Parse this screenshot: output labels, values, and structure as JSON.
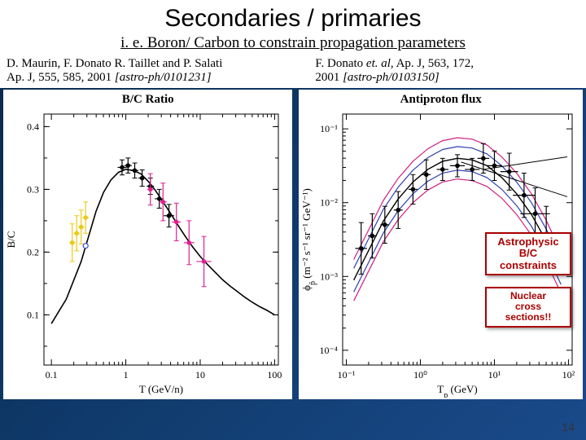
{
  "title": "Secondaries / primaries",
  "subtitle": "i. e. Boron/ Carbon to constrain propagation parameters",
  "ref_left_line1": "D. Maurin, F. Donato R. Taillet and P. Salati",
  "ref_left_line2_a": "Ap. J, 555, 585, 2001 ",
  "ref_left_line2_b": "[astro-ph/0101231]",
  "ref_right_line1_a": "F. Donato ",
  "ref_right_line1_b": "et. al",
  "ref_right_line1_c": ", Ap. J, 563, 172,",
  "ref_right_line2_a": "2001 ",
  "ref_right_line2_b": "[astro-ph/0103150]",
  "chart_left": {
    "title": "B/C Ratio",
    "xlabel": "T (GeV/n)",
    "ylabel": "B/C",
    "xlim_log": [
      -1.1,
      2.05
    ],
    "xticks": [
      -1,
      0,
      1,
      2
    ],
    "xtick_labels": [
      "0.1",
      "1",
      "10",
      "100"
    ],
    "ylim": [
      0.02,
      0.42
    ],
    "yticks": [
      0.1,
      0.2,
      0.3,
      0.4
    ],
    "ytick_labels": [
      "0.1",
      "0.2",
      "0.3",
      "0.4"
    ],
    "curve_color": "#000000",
    "curve": [
      [
        -1.0,
        0.086
      ],
      [
        -0.8,
        0.125
      ],
      [
        -0.6,
        0.185
      ],
      [
        -0.5,
        0.225
      ],
      [
        -0.4,
        0.265
      ],
      [
        -0.3,
        0.295
      ],
      [
        -0.2,
        0.315
      ],
      [
        -0.1,
        0.327
      ],
      [
        0.0,
        0.332
      ],
      [
        0.1,
        0.33
      ],
      [
        0.2,
        0.325
      ],
      [
        0.3,
        0.313
      ],
      [
        0.4,
        0.298
      ],
      [
        0.5,
        0.28
      ],
      [
        0.6,
        0.262
      ],
      [
        0.7,
        0.243
      ],
      [
        0.8,
        0.225
      ],
      [
        0.9,
        0.208
      ],
      [
        1.0,
        0.193
      ],
      [
        1.1,
        0.18
      ],
      [
        1.2,
        0.168
      ],
      [
        1.3,
        0.156
      ],
      [
        1.4,
        0.146
      ],
      [
        1.5,
        0.137
      ],
      [
        1.6,
        0.128
      ],
      [
        1.7,
        0.12
      ],
      [
        1.8,
        0.113
      ],
      [
        1.9,
        0.107
      ],
      [
        2.0,
        0.1
      ]
    ],
    "data_yellow": {
      "color": "#eec816",
      "points": [
        [
          -0.72,
          0.215,
          0.03,
          0.04
        ],
        [
          -0.66,
          0.23,
          0.028,
          0.04
        ],
        [
          -0.6,
          0.24,
          0.027,
          0.04
        ],
        [
          -0.54,
          0.255,
          0.025,
          0.04
        ]
      ]
    },
    "data_open_blue": {
      "color": "#3050d0",
      "points": [
        [
          -0.54,
          0.21,
          0.0,
          0.0
        ]
      ]
    },
    "data_black": {
      "color": "#000000",
      "points": [
        [
          -0.05,
          0.335,
          0.012,
          0.06
        ],
        [
          0.03,
          0.338,
          0.012,
          0.05
        ],
        [
          0.12,
          0.33,
          0.012,
          0.05
        ],
        [
          0.22,
          0.318,
          0.013,
          0.05
        ],
        [
          0.33,
          0.305,
          0.013,
          0.05
        ],
        [
          0.45,
          0.285,
          0.015,
          0.06
        ],
        [
          0.58,
          0.258,
          0.018,
          0.07
        ]
      ]
    },
    "data_magenta": {
      "color": "#e02090",
      "points": [
        [
          0.33,
          0.3,
          0.025,
          0.04
        ],
        [
          0.5,
          0.28,
          0.03,
          0.05
        ],
        [
          0.68,
          0.248,
          0.03,
          0.06
        ],
        [
          0.85,
          0.215,
          0.035,
          0.07
        ],
        [
          1.05,
          0.185,
          0.04,
          0.1
        ]
      ]
    }
  },
  "chart_right": {
    "title": "Antiproton flux",
    "xlabel": "T_p (GeV)",
    "ylabel_top": "ϕ",
    "ylabel_sub": "p̄",
    "ylabel_units": " (m⁻² s⁻¹ sr⁻¹ GeV⁻¹)",
    "xlim_log": [
      -1.05,
      2.05
    ],
    "xticks": [
      -1,
      0,
      1,
      2
    ],
    "xtick_labels": [
      "10⁻¹",
      "10⁰",
      "10¹",
      "10²"
    ],
    "ylim_log": [
      -4.2,
      -0.8
    ],
    "yticks": [
      -4,
      -3,
      -2,
      -1
    ],
    "ytick_labels": [
      "10⁻⁴",
      "10⁻³",
      "10⁻²",
      "10⁻¹"
    ],
    "band_outer_color": "#d02080",
    "band_mid_color": "#3040b0",
    "band_inner_color": "#000000",
    "band_center": [
      [
        -0.9,
        -3.05
      ],
      [
        -0.7,
        -2.65
      ],
      [
        -0.5,
        -2.25
      ],
      [
        -0.3,
        -1.95
      ],
      [
        -0.1,
        -1.72
      ],
      [
        0.1,
        -1.55
      ],
      [
        0.3,
        -1.44
      ],
      [
        0.5,
        -1.4
      ],
      [
        0.7,
        -1.42
      ],
      [
        0.9,
        -1.5
      ],
      [
        1.1,
        -1.66
      ],
      [
        1.3,
        -1.88
      ],
      [
        1.5,
        -2.16
      ],
      [
        1.7,
        -2.52
      ],
      [
        1.9,
        -2.95
      ]
    ],
    "band_outer_dy": 0.28,
    "band_mid_dy": 0.16,
    "data_points": [
      [
        -0.8,
        -2.62,
        0.35,
        0.08
      ],
      [
        -0.65,
        -2.45,
        0.3,
        0.06
      ],
      [
        -0.48,
        -2.3,
        0.25,
        0.06
      ],
      [
        -0.3,
        -2.1,
        0.25,
        0.06
      ],
      [
        -0.1,
        -1.82,
        0.2,
        0.06
      ],
      [
        0.08,
        -1.62,
        0.2,
        0.06
      ],
      [
        0.3,
        -1.55,
        0.15,
        0.08
      ],
      [
        0.5,
        -1.5,
        0.15,
        0.1
      ],
      [
        0.7,
        -1.55,
        0.15,
        0.1
      ],
      [
        0.85,
        -1.4,
        0.2,
        0.08
      ],
      [
        1.0,
        -1.5,
        0.2,
        0.1
      ],
      [
        1.2,
        -1.58,
        0.25,
        0.12
      ],
      [
        1.4,
        -1.9,
        0.3,
        0.15
      ],
      [
        1.55,
        -2.15,
        0.35,
        0.2
      ],
      [
        1.7,
        -2.45,
        0.4,
        0.25
      ]
    ]
  },
  "annot1_l1": "Astrophysic",
  "annot1_l2": "B/C",
  "annot1_l3": "constraints",
  "annot2_l1": "Nuclear",
  "annot2_l2": "cross",
  "annot2_l3": "sections!!",
  "page_num": "14"
}
